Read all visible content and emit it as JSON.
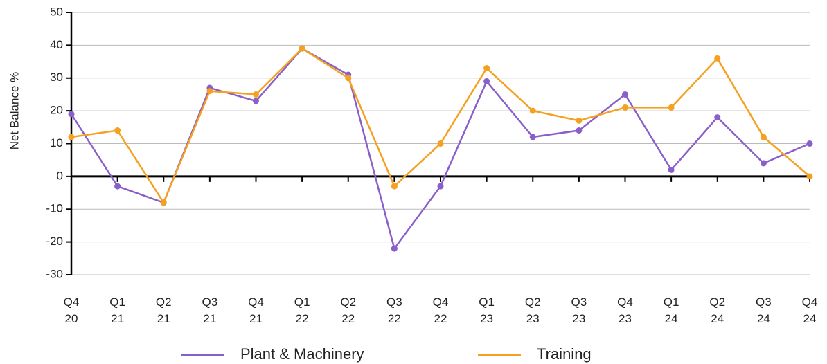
{
  "chart_data": {
    "type": "line",
    "y_label": "Net Balance %",
    "categories": [
      "Q4 20",
      "Q1 21",
      "Q2 21",
      "Q3 21",
      "Q4 21",
      "Q1 22",
      "Q2 22",
      "Q3 22",
      "Q4 22",
      "Q1 23",
      "Q2 23",
      "Q3 23",
      "Q4 23",
      "Q1 24",
      "Q2 24",
      "Q3 24",
      "Q4 24"
    ],
    "series": [
      {
        "name": "Plant & Machinery",
        "color": "#8a5fc9",
        "values": [
          19,
          -3,
          -8,
          27,
          23,
          39,
          31,
          -22,
          -3,
          29,
          12,
          14,
          25,
          2,
          18,
          4,
          10
        ]
      },
      {
        "name": "Training",
        "color": "#f5a01e",
        "values": [
          12,
          14,
          -8,
          26,
          25,
          39,
          30,
          -3,
          10,
          33,
          20,
          17,
          21,
          21,
          36,
          12,
          0
        ]
      }
    ],
    "ylim": [
      -30,
      50
    ],
    "yticks": [
      -30,
      -20,
      -10,
      0,
      10,
      20,
      30,
      40,
      50
    ],
    "grid": true,
    "legend": "bottom"
  }
}
